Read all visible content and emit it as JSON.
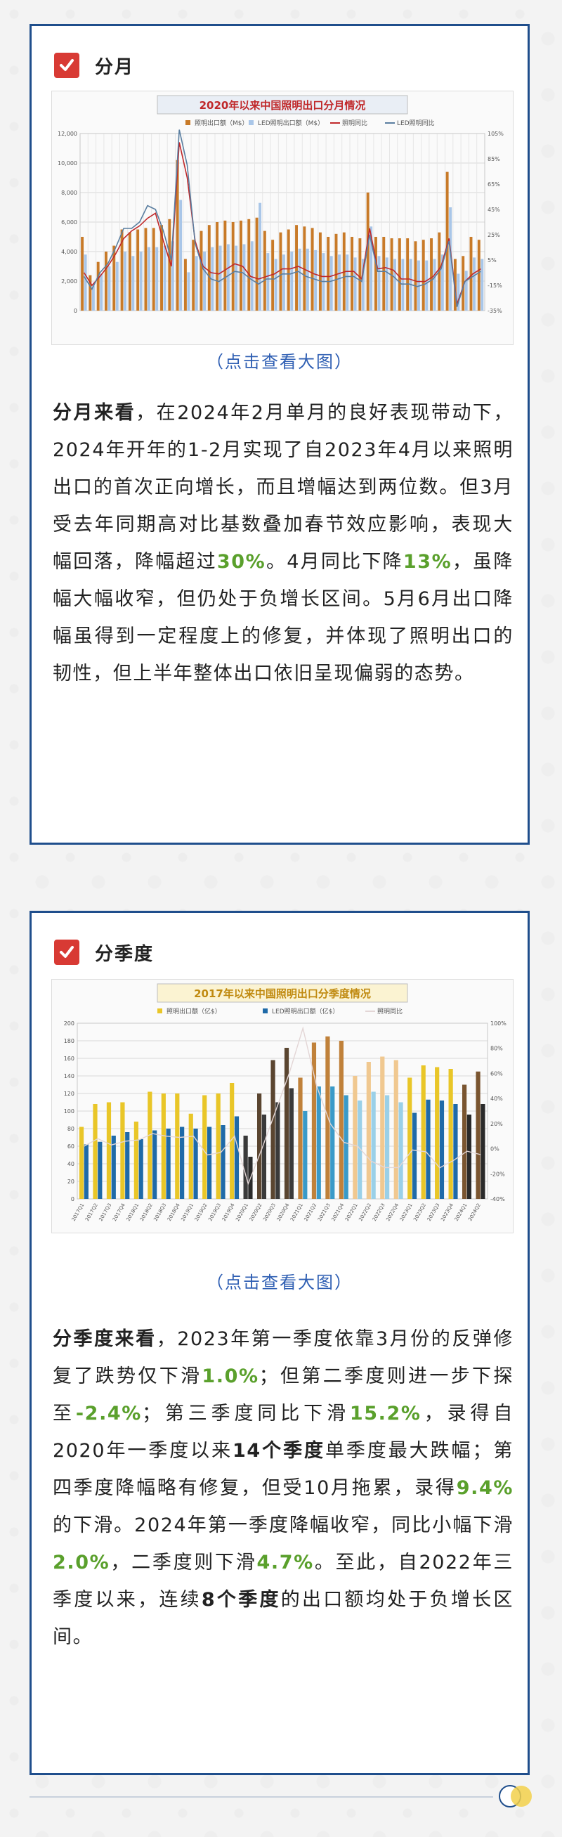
{
  "section1": {
    "title": "分月",
    "link": "（点击查看大图）",
    "paragraph": [
      {
        "t": "分月来看",
        "s": "b"
      },
      {
        "t": "，在2024年2月单月的良好表现带动下，2024年开年的1-2月实现了自2023年4月以来照明出口的首次正向增长，而且增幅达到两位数。但3月受去年同期高对比基数叠加春节效应影响，表现大幅回落，降幅超过"
      },
      {
        "t": "30%",
        "s": "g"
      },
      {
        "t": "。4月同比下降"
      },
      {
        "t": "13%",
        "s": "g"
      },
      {
        "t": "，虽降幅大幅收窄，但仍处于负增长区间。5月6月出口降幅虽得到一定程度上的修复，并体现了照明出口的韧性，但上半年整体出口依旧呈现偏弱的态势。"
      }
    ]
  },
  "section2": {
    "title": "分季度",
    "link": "（点击查看大图）",
    "paragraph": [
      {
        "t": "分季度来看",
        "s": "b"
      },
      {
        "t": "，2023年第一季度依靠3月份的反弹修复了跌势仅下滑"
      },
      {
        "t": "1.0%",
        "s": "g"
      },
      {
        "t": "；但第二季度则进一步下探至"
      },
      {
        "t": "-2.4%",
        "s": "g"
      },
      {
        "t": "；第三季度同比下滑"
      },
      {
        "t": "15.2%",
        "s": "g"
      },
      {
        "t": "，录得自2020年一季度以来"
      },
      {
        "t": "14个季度",
        "s": "b"
      },
      {
        "t": "单季度最大跌幅；第四季度降幅略有修复，但受10月拖累，录得"
      },
      {
        "t": "9.4%",
        "s": "g"
      },
      {
        "t": "的下滑。2024年第一季度降幅收窄，同比小幅下滑"
      },
      {
        "t": "2.0%",
        "s": "g"
      },
      {
        "t": "，二季度则下滑"
      },
      {
        "t": "4.7%",
        "s": "g"
      },
      {
        "t": "。至此，自2022年三季度以来，连续"
      },
      {
        "t": "8个季度",
        "s": "b"
      },
      {
        "t": "的出口额均处于负增长区间。"
      }
    ]
  },
  "chart_data": [
    {
      "type": "bar",
      "title": "2020年以来中国照明出口分月情况",
      "series": [
        {
          "name": "照明出口额（M$）",
          "kind": "bar",
          "axis": "left",
          "color": "#c87a28",
          "values": [
            5000,
            2400,
            3300,
            4000,
            4400,
            5500,
            5300,
            5500,
            5600,
            5600,
            5800,
            6200,
            10200,
            3500,
            4800,
            5400,
            5800,
            6000,
            6100,
            6000,
            6100,
            6200,
            6300,
            5400,
            4800,
            5300,
            5500,
            5800,
            5700,
            5600,
            5300,
            5000,
            5200,
            5300,
            5000,
            4900,
            8000,
            5000,
            5000,
            4900,
            4900,
            4900,
            4700,
            4800,
            4900,
            5300,
            9400,
            3500,
            3700,
            5000,
            4800
          ]
        },
        {
          "name": "LED照明出口额（M$）",
          "kind": "bar",
          "axis": "left",
          "color": "#a9c6e8",
          "values": [
            3800,
            1700,
            2500,
            3000,
            3300,
            4000,
            3700,
            4000,
            4300,
            4300,
            4400,
            4700,
            7500,
            2600,
            3700,
            4000,
            4300,
            4400,
            4500,
            4400,
            4500,
            4700,
            7300,
            3900,
            3500,
            3800,
            4000,
            4200,
            4200,
            4100,
            3900,
            3700,
            3800,
            3800,
            3600,
            3500,
            5700,
            3700,
            3600,
            3500,
            3500,
            3500,
            3400,
            3400,
            3500,
            3800,
            7000,
            2500,
            2700,
            3600,
            3500
          ]
        },
        {
          "name": "照明同比",
          "kind": "line",
          "axis": "right",
          "color": "#c0282a",
          "values": [
            -5,
            -15,
            -8,
            0,
            10,
            22,
            28,
            32,
            38,
            42,
            20,
            0,
            98,
            70,
            20,
            0,
            -5,
            -6,
            -2,
            2,
            0,
            -8,
            -10,
            -8,
            -6,
            -2,
            -2,
            0,
            -3,
            -6,
            -8,
            -8,
            -6,
            -4,
            -4,
            -10,
            30,
            -2,
            -1,
            -3,
            -10,
            -10,
            -12,
            -12,
            -8,
            0,
            22,
            -30,
            -12,
            -6,
            -2
          ]
        },
        {
          "name": "LED照明同比",
          "kind": "line",
          "axis": "right",
          "color": "#5a7ea0",
          "values": [
            -8,
            -18,
            -5,
            2,
            15,
            30,
            30,
            35,
            48,
            45,
            28,
            5,
            108,
            80,
            18,
            -2,
            -10,
            -12,
            -8,
            -4,
            -5,
            -10,
            -14,
            -10,
            -10,
            -6,
            -6,
            -4,
            -8,
            -10,
            -12,
            -12,
            -10,
            -8,
            -8,
            -12,
            25,
            -4,
            -4,
            -8,
            -14,
            -14,
            -16,
            -14,
            -10,
            -2,
            20,
            -32,
            -12,
            -8,
            -4
          ]
        }
      ],
      "ylim_left": [
        0,
        12000
      ],
      "ylim_right": [
        -35,
        105
      ],
      "yticks_left": [
        "0",
        "2,000",
        "4,000",
        "6,000",
        "8,000",
        "10,000",
        "12,000"
      ],
      "yticks_right": [
        "-35%",
        "-15%",
        "5%",
        "25%",
        "45%",
        "65%",
        "85%",
        "105%"
      ]
    },
    {
      "type": "bar",
      "title": "2017年以来中国照明出口分季度情况",
      "categories": [
        "2017Q1",
        "2017Q2",
        "2017Q3",
        "2017Q4",
        "2018Q1",
        "2018Q2",
        "2018Q3",
        "2018Q4",
        "2019Q1",
        "2019Q2",
        "2019Q3",
        "2019Q4",
        "2020Q1",
        "2020Q2",
        "2020Q3",
        "2020Q4",
        "2021Q1",
        "2021Q2",
        "2021Q3",
        "2021Q4",
        "2022Q1",
        "2022Q2",
        "2022Q3",
        "2022Q4",
        "2023Q1",
        "2023Q2",
        "2023Q3",
        "2023Q4",
        "2024Q1",
        "2024Q2"
      ],
      "series": [
        {
          "name": "照明出口额（亿$）",
          "kind": "bar",
          "axis": "left",
          "colors": [
            "#e9c628",
            "#e9c628",
            "#e9c628",
            "#e9c628",
            "#e9c628",
            "#e9c628",
            "#e9c628",
            "#e9c628",
            "#e9c628",
            "#e9c628",
            "#e9c628",
            "#e9c628",
            "#3a3a3a",
            "#5a4530",
            "#5a4530",
            "#5a4530",
            "#c0813a",
            "#c0813a",
            "#c0813a",
            "#c0813a",
            "#f0c890",
            "#f0c890",
            "#f0c890",
            "#f0c890",
            "#e9c628",
            "#e9c628",
            "#e9c628",
            "#e9c628",
            "#7a5530",
            "#7a5530"
          ],
          "values": [
            82,
            108,
            110,
            110,
            88,
            122,
            120,
            120,
            97,
            118,
            120,
            132,
            72,
            120,
            158,
            172,
            138,
            178,
            185,
            180,
            140,
            156,
            162,
            158,
            138,
            152,
            150,
            148,
            130,
            145
          ]
        },
        {
          "name": "LED照明出口额（亿$）",
          "kind": "bar",
          "axis": "left",
          "colors": [
            "#1f6aa8",
            "#1f6aa8",
            "#1f6aa8",
            "#1f6aa8",
            "#1f6aa8",
            "#1f6aa8",
            "#1f6aa8",
            "#1f6aa8",
            "#1f6aa8",
            "#1f6aa8",
            "#1f6aa8",
            "#1f6aa8",
            "#2a2a2a",
            "#3a3a3a",
            "#3a3a3a",
            "#3a3a3a",
            "#3a9ac8",
            "#3a9ac8",
            "#3a9ac8",
            "#3a9ac8",
            "#9ad0e8",
            "#9ad0e8",
            "#9ad0e8",
            "#9ad0e8",
            "#1f6aa8",
            "#1f6aa8",
            "#1f6aa8",
            "#1f6aa8",
            "#2a2a2a",
            "#2a2a2a"
          ],
          "values": [
            62,
            65,
            72,
            76,
            68,
            78,
            80,
            82,
            80,
            82,
            84,
            94,
            48,
            96,
            110,
            126,
            100,
            128,
            128,
            118,
            112,
            122,
            118,
            110,
            98,
            113,
            112,
            108,
            96,
            108
          ]
        },
        {
          "name": "照明同比",
          "kind": "line",
          "axis": "right",
          "color": "#e3d6d6",
          "values": [
            2,
            8,
            3,
            6,
            7,
            12,
            10,
            9,
            10,
            -5,
            -3,
            10,
            -28,
            0,
            30,
            60,
            96,
            50,
            20,
            5,
            2,
            -10,
            -15,
            -15,
            -1,
            -2.4,
            -15.2,
            -9.4,
            -2,
            -4.7
          ]
        }
      ],
      "ylim_left": [
        0,
        200
      ],
      "ylim_right": [
        -40,
        100
      ],
      "yticks_left": [
        "0",
        "20",
        "40",
        "60",
        "80",
        "100",
        "120",
        "140",
        "160",
        "180",
        "200"
      ],
      "yticks_right": [
        "-40%",
        "-20%",
        "0%",
        "20%",
        "40%",
        "60%",
        "80%",
        "100%"
      ]
    }
  ]
}
